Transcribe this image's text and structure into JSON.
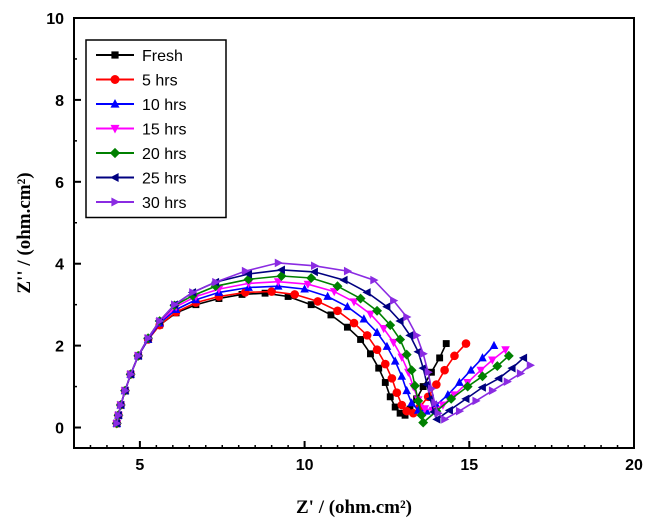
{
  "chart_data": {
    "type": "scatter",
    "xlabel": "Z' / (ohm.cm²)",
    "ylabel": "Z'' / (ohm.cm²)",
    "xlim": [
      3,
      20
    ],
    "ylim": [
      -0.5,
      10
    ],
    "x_ticks": [
      5,
      10,
      15,
      20
    ],
    "y_ticks": [
      0,
      2,
      4,
      6,
      8,
      10
    ],
    "grid": false,
    "legend_position": "top-left",
    "series": [
      {
        "name": "Fresh",
        "color": "#000000",
        "marker": "square",
        "points": [
          [
            4.3,
            0.1
          ],
          [
            4.35,
            0.3
          ],
          [
            4.42,
            0.55
          ],
          [
            4.55,
            0.9
          ],
          [
            4.72,
            1.3
          ],
          [
            4.95,
            1.75
          ],
          [
            5.25,
            2.15
          ],
          [
            5.6,
            2.5
          ],
          [
            6.1,
            2.8
          ],
          [
            6.7,
            3.0
          ],
          [
            7.4,
            3.15
          ],
          [
            8.1,
            3.25
          ],
          [
            8.8,
            3.28
          ],
          [
            9.5,
            3.2
          ],
          [
            10.2,
            3.0
          ],
          [
            10.8,
            2.75
          ],
          [
            11.3,
            2.45
          ],
          [
            11.7,
            2.15
          ],
          [
            12.0,
            1.8
          ],
          [
            12.25,
            1.45
          ],
          [
            12.45,
            1.1
          ],
          [
            12.6,
            0.75
          ],
          [
            12.75,
            0.5
          ],
          [
            12.9,
            0.35
          ],
          [
            13.05,
            0.3
          ],
          [
            13.2,
            0.45
          ],
          [
            13.4,
            0.7
          ],
          [
            13.6,
            1.0
          ],
          [
            13.85,
            1.35
          ],
          [
            14.1,
            1.7
          ],
          [
            14.3,
            2.05
          ]
        ]
      },
      {
        "name": "5 hrs",
        "color": "#ff0000",
        "marker": "circle",
        "points": [
          [
            4.3,
            0.1
          ],
          [
            4.35,
            0.3
          ],
          [
            4.42,
            0.55
          ],
          [
            4.55,
            0.9
          ],
          [
            4.72,
            1.3
          ],
          [
            4.95,
            1.75
          ],
          [
            5.25,
            2.15
          ],
          [
            5.6,
            2.5
          ],
          [
            6.1,
            2.82
          ],
          [
            6.7,
            3.05
          ],
          [
            7.4,
            3.2
          ],
          [
            8.2,
            3.3
          ],
          [
            9.0,
            3.32
          ],
          [
            9.7,
            3.25
          ],
          [
            10.4,
            3.08
          ],
          [
            11.0,
            2.85
          ],
          [
            11.5,
            2.55
          ],
          [
            11.9,
            2.25
          ],
          [
            12.2,
            1.9
          ],
          [
            12.45,
            1.55
          ],
          [
            12.65,
            1.2
          ],
          [
            12.8,
            0.85
          ],
          [
            12.95,
            0.55
          ],
          [
            13.1,
            0.4
          ],
          [
            13.3,
            0.35
          ],
          [
            13.5,
            0.5
          ],
          [
            13.75,
            0.75
          ],
          [
            14.0,
            1.05
          ],
          [
            14.25,
            1.4
          ],
          [
            14.55,
            1.75
          ],
          [
            14.9,
            2.05
          ]
        ]
      },
      {
        "name": "10 hrs",
        "color": "#0000ff",
        "marker": "triangle-up",
        "points": [
          [
            4.3,
            0.1
          ],
          [
            4.35,
            0.3
          ],
          [
            4.42,
            0.55
          ],
          [
            4.55,
            0.9
          ],
          [
            4.72,
            1.3
          ],
          [
            4.95,
            1.75
          ],
          [
            5.25,
            2.15
          ],
          [
            5.6,
            2.55
          ],
          [
            6.1,
            2.88
          ],
          [
            6.7,
            3.12
          ],
          [
            7.4,
            3.3
          ],
          [
            8.3,
            3.42
          ],
          [
            9.2,
            3.45
          ],
          [
            10.0,
            3.38
          ],
          [
            10.7,
            3.2
          ],
          [
            11.3,
            2.95
          ],
          [
            11.8,
            2.65
          ],
          [
            12.2,
            2.32
          ],
          [
            12.5,
            1.98
          ],
          [
            12.75,
            1.62
          ],
          [
            12.95,
            1.25
          ],
          [
            13.1,
            0.9
          ],
          [
            13.25,
            0.6
          ],
          [
            13.45,
            0.42
          ],
          [
            13.7,
            0.4
          ],
          [
            14.0,
            0.55
          ],
          [
            14.35,
            0.8
          ],
          [
            14.7,
            1.1
          ],
          [
            15.05,
            1.4
          ],
          [
            15.4,
            1.7
          ],
          [
            15.75,
            2.0
          ]
        ]
      },
      {
        "name": "15 hrs",
        "color": "#ff00ff",
        "marker": "triangle-down",
        "points": [
          [
            4.3,
            0.1
          ],
          [
            4.35,
            0.3
          ],
          [
            4.42,
            0.55
          ],
          [
            4.55,
            0.9
          ],
          [
            4.72,
            1.3
          ],
          [
            4.95,
            1.75
          ],
          [
            5.25,
            2.18
          ],
          [
            5.6,
            2.58
          ],
          [
            6.1,
            2.95
          ],
          [
            6.7,
            3.2
          ],
          [
            7.4,
            3.38
          ],
          [
            8.3,
            3.52
          ],
          [
            9.2,
            3.56
          ],
          [
            10.1,
            3.5
          ],
          [
            10.9,
            3.32
          ],
          [
            11.5,
            3.07
          ],
          [
            12.0,
            2.77
          ],
          [
            12.4,
            2.42
          ],
          [
            12.7,
            2.08
          ],
          [
            12.95,
            1.72
          ],
          [
            13.15,
            1.35
          ],
          [
            13.3,
            1.0
          ],
          [
            13.45,
            0.68
          ],
          [
            13.65,
            0.46
          ],
          [
            13.9,
            0.42
          ],
          [
            14.2,
            0.55
          ],
          [
            14.55,
            0.8
          ],
          [
            14.95,
            1.1
          ],
          [
            15.35,
            1.4
          ],
          [
            15.7,
            1.65
          ],
          [
            16.1,
            1.9
          ]
        ]
      },
      {
        "name": "20 hrs",
        "color": "#008000",
        "marker": "diamond",
        "points": [
          [
            4.3,
            0.1
          ],
          [
            4.35,
            0.3
          ],
          [
            4.42,
            0.55
          ],
          [
            4.55,
            0.9
          ],
          [
            4.72,
            1.3
          ],
          [
            4.95,
            1.75
          ],
          [
            5.25,
            2.18
          ],
          [
            5.6,
            2.6
          ],
          [
            6.05,
            2.98
          ],
          [
            6.6,
            3.22
          ],
          [
            7.3,
            3.45
          ],
          [
            8.3,
            3.62
          ],
          [
            9.3,
            3.7
          ],
          [
            10.2,
            3.65
          ],
          [
            11.0,
            3.45
          ],
          [
            11.7,
            3.15
          ],
          [
            12.2,
            2.85
          ],
          [
            12.6,
            2.5
          ],
          [
            12.9,
            2.15
          ],
          [
            13.1,
            1.78
          ],
          [
            13.25,
            1.4
          ],
          [
            13.35,
            1.02
          ],
          [
            13.45,
            0.65
          ],
          [
            13.55,
            0.3
          ],
          [
            13.6,
            0.12
          ],
          [
            14.0,
            0.4
          ],
          [
            14.45,
            0.7
          ],
          [
            14.95,
            1.0
          ],
          [
            15.4,
            1.25
          ],
          [
            15.85,
            1.5
          ],
          [
            16.2,
            1.75
          ]
        ]
      },
      {
        "name": "25 hrs",
        "color": "#000080",
        "marker": "triangle-left",
        "points": [
          [
            4.3,
            0.1
          ],
          [
            4.35,
            0.3
          ],
          [
            4.42,
            0.55
          ],
          [
            4.55,
            0.9
          ],
          [
            4.72,
            1.3
          ],
          [
            4.95,
            1.75
          ],
          [
            5.25,
            2.18
          ],
          [
            5.6,
            2.6
          ],
          [
            6.05,
            3.0
          ],
          [
            6.6,
            3.3
          ],
          [
            7.3,
            3.55
          ],
          [
            8.3,
            3.75
          ],
          [
            9.3,
            3.85
          ],
          [
            10.3,
            3.8
          ],
          [
            11.2,
            3.6
          ],
          [
            11.9,
            3.3
          ],
          [
            12.5,
            2.95
          ],
          [
            12.9,
            2.6
          ],
          [
            13.2,
            2.25
          ],
          [
            13.45,
            1.85
          ],
          [
            13.6,
            1.45
          ],
          [
            13.72,
            1.05
          ],
          [
            13.82,
            0.7
          ],
          [
            13.92,
            0.38
          ],
          [
            14.02,
            0.2
          ],
          [
            14.4,
            0.42
          ],
          [
            14.9,
            0.7
          ],
          [
            15.4,
            0.98
          ],
          [
            15.9,
            1.2
          ],
          [
            16.3,
            1.45
          ],
          [
            16.65,
            1.7
          ]
        ]
      },
      {
        "name": "30 hrs",
        "color": "#8a2be2",
        "marker": "triangle-right",
        "points": [
          [
            4.3,
            0.1
          ],
          [
            4.35,
            0.3
          ],
          [
            4.42,
            0.55
          ],
          [
            4.55,
            0.9
          ],
          [
            4.72,
            1.3
          ],
          [
            4.95,
            1.75
          ],
          [
            5.25,
            2.18
          ],
          [
            5.6,
            2.6
          ],
          [
            6.05,
            3.0
          ],
          [
            6.6,
            3.3
          ],
          [
            7.3,
            3.55
          ],
          [
            8.2,
            3.82
          ],
          [
            9.2,
            4.02
          ],
          [
            10.3,
            3.95
          ],
          [
            11.3,
            3.82
          ],
          [
            12.1,
            3.6
          ],
          [
            12.7,
            3.1
          ],
          [
            13.1,
            2.7
          ],
          [
            13.4,
            2.25
          ],
          [
            13.6,
            1.8
          ],
          [
            13.75,
            1.35
          ],
          [
            13.85,
            0.95
          ],
          [
            13.95,
            0.6
          ],
          [
            14.05,
            0.35
          ],
          [
            14.25,
            0.2
          ],
          [
            14.7,
            0.4
          ],
          [
            15.2,
            0.65
          ],
          [
            15.7,
            0.9
          ],
          [
            16.15,
            1.12
          ],
          [
            16.55,
            1.32
          ],
          [
            16.85,
            1.52
          ]
        ]
      }
    ]
  }
}
